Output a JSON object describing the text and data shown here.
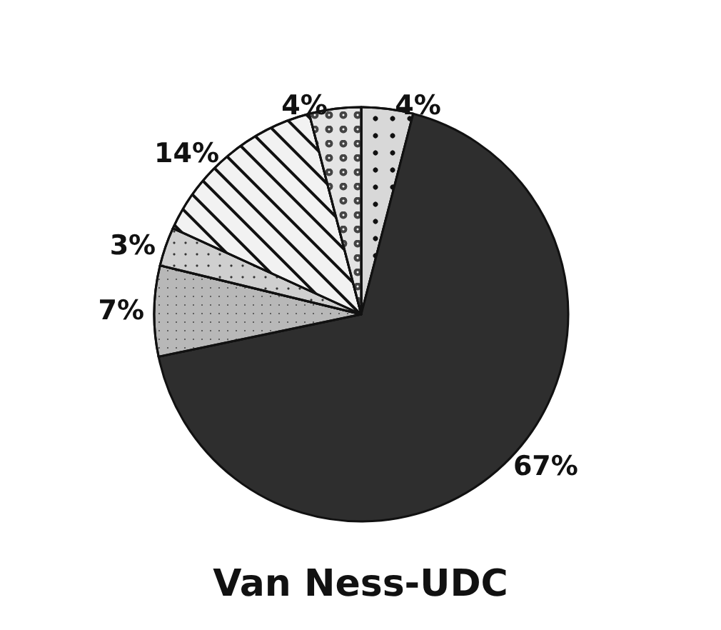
{
  "chart_data": {
    "type": "pie",
    "title": "Van Ness-UDC",
    "categories": [
      null,
      null,
      null,
      null,
      null,
      null
    ],
    "values": [
      4,
      67,
      7,
      3,
      14,
      4
    ],
    "colors": [
      "#d8d8d8",
      "#2e2e2e",
      "#b8b8b8",
      "#cfcfcf",
      "#f2f2f2",
      "#e4e4e4"
    ],
    "value_labels": [
      "4%",
      "67%",
      "7%",
      "3%",
      "14%",
      "4%"
    ]
  }
}
